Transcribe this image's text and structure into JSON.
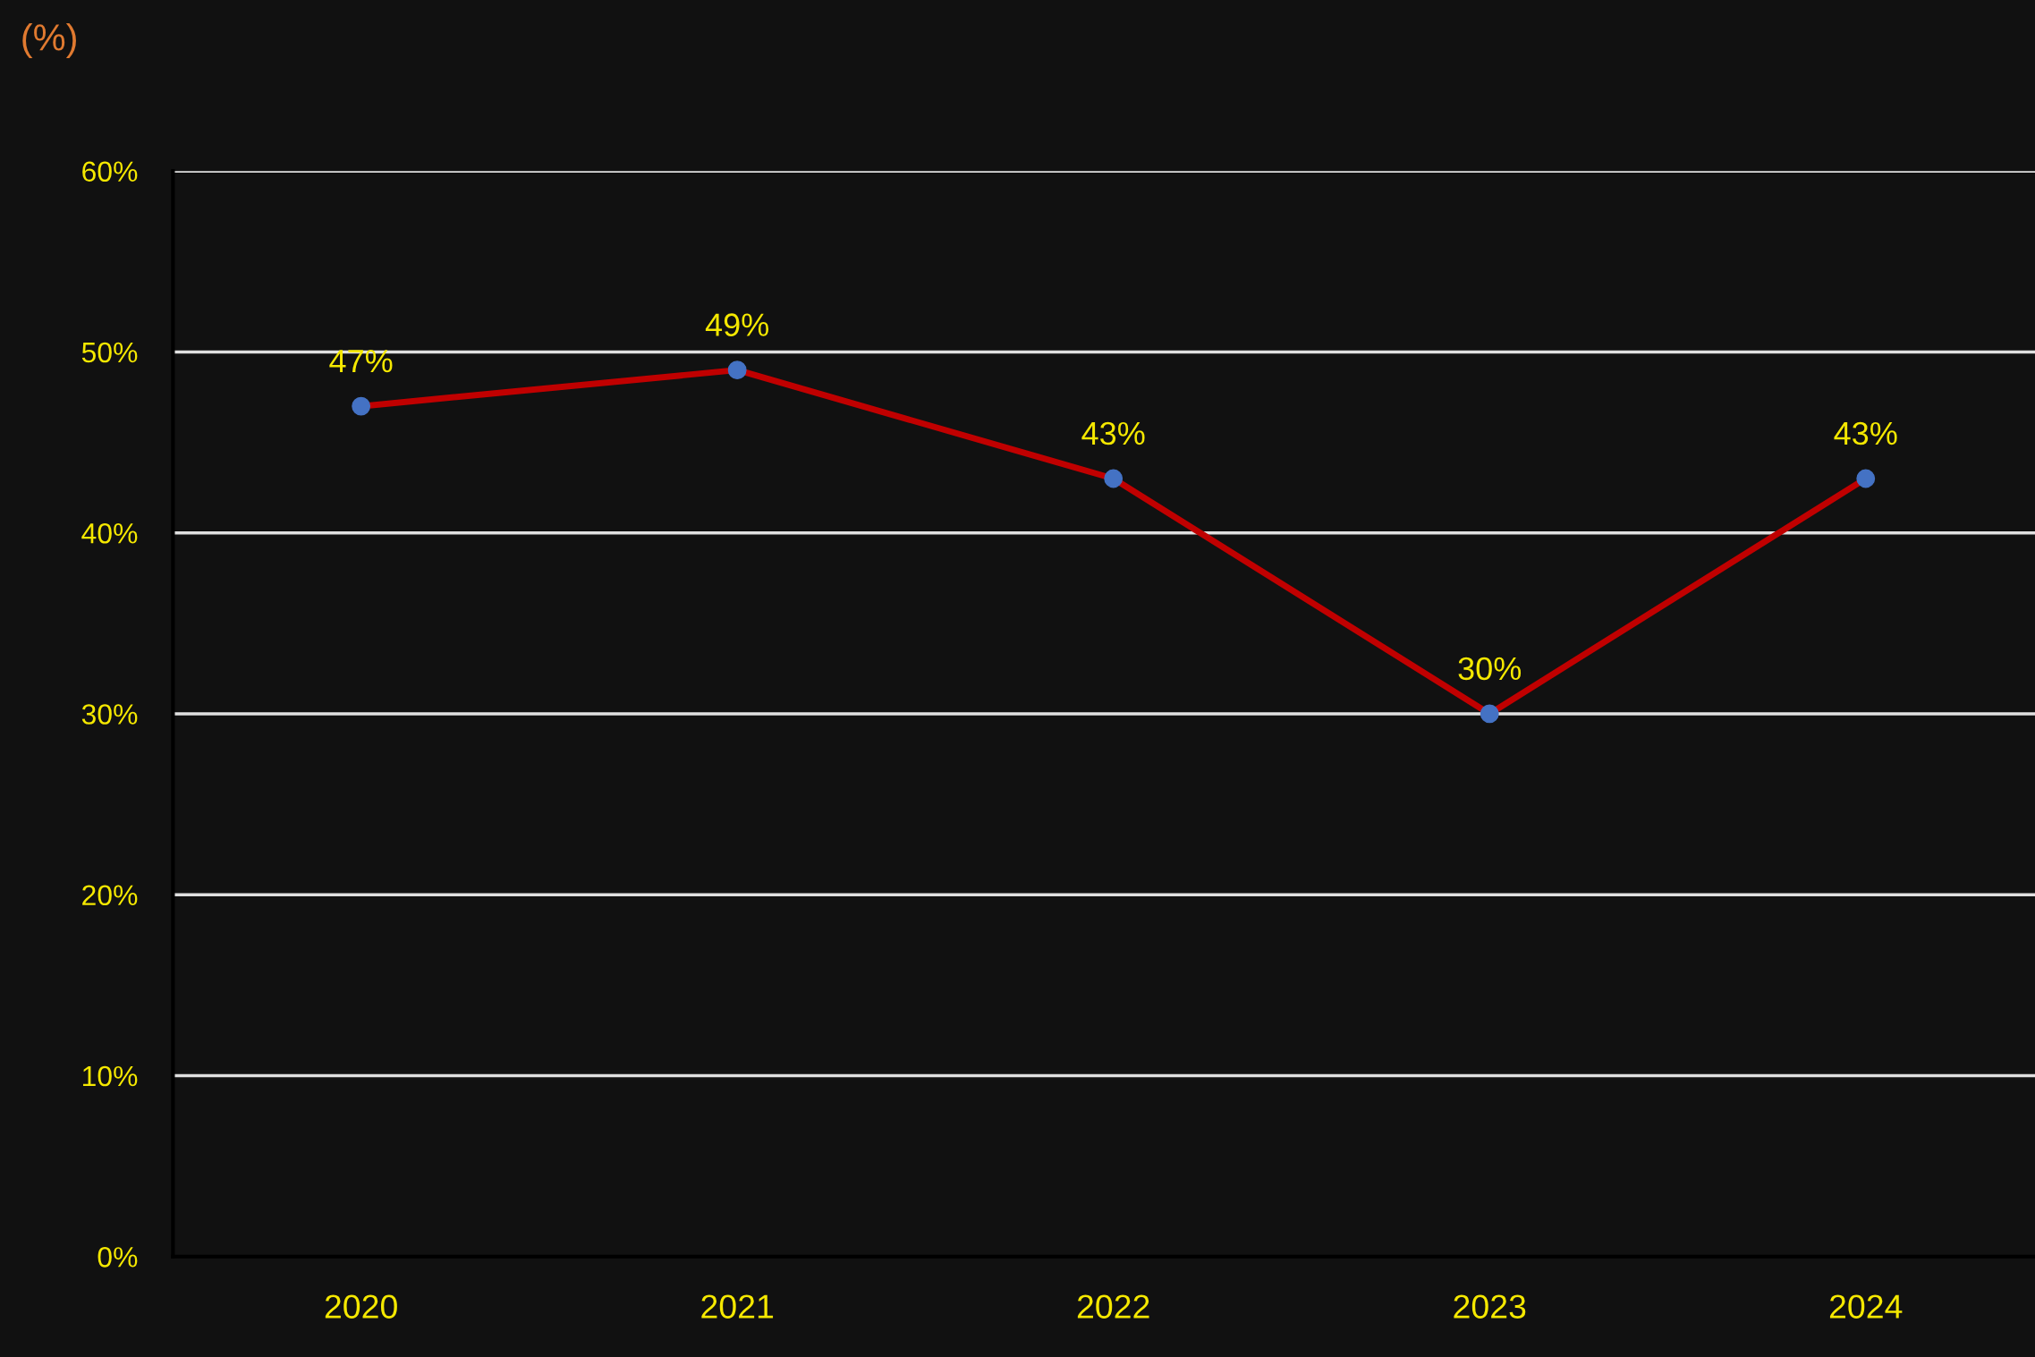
{
  "chart_data": {
    "type": "line",
    "ylabel": "(%)",
    "categories": [
      "2020",
      "2021",
      "2022",
      "2023",
      "2024"
    ],
    "series": [
      {
        "color": "#c00000",
        "values": [
          47,
          49,
          43,
          30,
          43
        ],
        "value_labels": [
          "47%",
          "49%",
          "43%",
          "30%",
          "43%"
        ]
      }
    ],
    "marker": "circle",
    "line_style": "solid",
    "ylim": [
      0,
      60
    ],
    "yticks": [
      {
        "value": 0,
        "label": "0%"
      },
      {
        "value": 10,
        "label": "10%"
      },
      {
        "value": 20,
        "label": "20%"
      },
      {
        "value": 30,
        "label": "30%"
      },
      {
        "value": 40,
        "label": "40%"
      },
      {
        "value": 50,
        "label": "50%"
      },
      {
        "value": 60,
        "label": "60%"
      }
    ],
    "grid": "y",
    "legend": false
  }
}
